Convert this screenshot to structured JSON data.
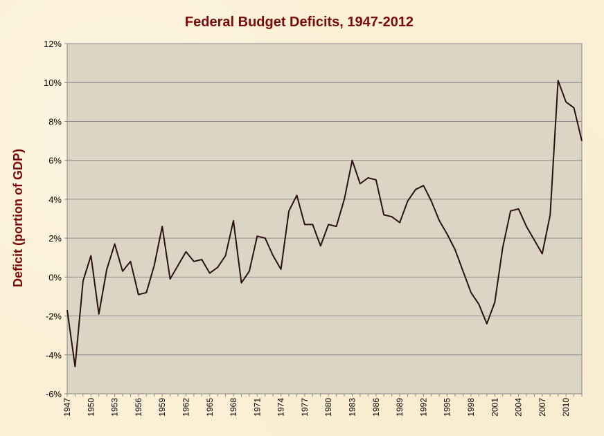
{
  "chart_data": {
    "type": "line",
    "title": "Federal Budget Deficits, 1947-2012",
    "xlabel": "",
    "ylabel": "Deficit (portion of GDP)",
    "ylim": [
      -6,
      12
    ],
    "xlim": [
      1947,
      2012
    ],
    "grid": true,
    "y_tick_labels": [
      "12%",
      "10%",
      "8%",
      "6%",
      "4%",
      "2%",
      "0%",
      "-2%",
      "-4%",
      "-6%"
    ],
    "x_tick_labels": [
      "1947",
      "1950",
      "1953",
      "1956",
      "1959",
      "1962",
      "1965",
      "1968",
      "1971",
      "1974",
      "1977",
      "1980",
      "1983",
      "1986",
      "1989",
      "1992",
      "1995",
      "1998",
      "2001",
      "2004",
      "2007",
      "2010"
    ],
    "plot_background": "#ddd5c4",
    "line_color": "#2a1010",
    "title_color": "#7a0a0a",
    "series": [
      {
        "x": [
          1947,
          1948,
          1949,
          1950,
          1951,
          1952,
          1953,
          1954,
          1955,
          1956,
          1957,
          1958,
          1959,
          1960,
          1961,
          1962,
          1963,
          1964,
          1965,
          1966,
          1967,
          1968,
          1969,
          1970,
          1971,
          1972,
          1973,
          1974,
          1975,
          1976,
          1977,
          1978,
          1979,
          1980,
          1981,
          1982,
          1983,
          1984,
          1985,
          1986,
          1987,
          1988,
          1989,
          1990,
          1991,
          1992,
          1993,
          1994,
          1995,
          1996,
          1997,
          1998,
          1999,
          2000,
          2001,
          2002,
          2003,
          2004,
          2005,
          2006,
          2007,
          2008,
          2009,
          2010,
          2011,
          2012
        ],
        "values": [
          -1.7,
          -4.6,
          -0.2,
          1.1,
          -1.9,
          0.4,
          1.7,
          0.3,
          0.8,
          -0.9,
          -0.8,
          0.6,
          2.6,
          -0.1,
          0.6,
          1.3,
          0.8,
          0.9,
          0.2,
          0.5,
          1.1,
          2.9,
          -0.3,
          0.3,
          2.1,
          2.0,
          1.1,
          0.4,
          3.4,
          4.2,
          2.7,
          2.7,
          1.6,
          2.7,
          2.6,
          4.0,
          6.0,
          4.8,
          5.1,
          5.0,
          3.2,
          3.1,
          2.8,
          3.9,
          4.5,
          4.7,
          3.9,
          2.9,
          2.2,
          1.4,
          0.3,
          -0.8,
          -1.4,
          -2.4,
          -1.3,
          1.5,
          3.4,
          3.5,
          2.6,
          1.9,
          1.2,
          3.2,
          10.1,
          9.0,
          8.7,
          7.0
        ]
      }
    ]
  }
}
